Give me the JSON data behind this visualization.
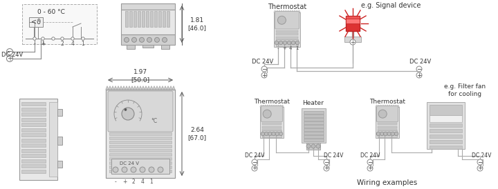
{
  "bg_color": "#ffffff",
  "lc": "#888888",
  "lc_dark": "#555555",
  "tc": "#333333",
  "rc": "#cc2222",
  "title": "Wiring examples",
  "thermostat_label": "Thermostat",
  "heater_label": "Heater",
  "signal_label": "e.g. Signal device",
  "fan_label": "e.g. Filter fan\nfor cooling",
  "dc24_label": "DC 24V",
  "temp_range": "0 - 60 °C",
  "dim1": "1.81\n[46.0]",
  "dim2": "1.97\n[50.0]",
  "dim3": "2.64\n[67.0]"
}
